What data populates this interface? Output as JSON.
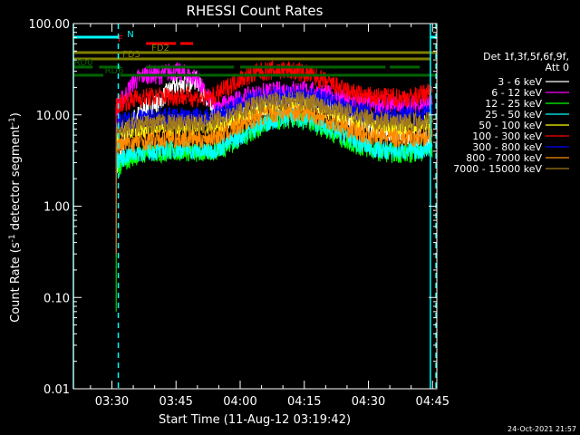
{
  "chart_data": {
    "type": "line",
    "title": "RHESSI Count Rates",
    "xlabel": "Start Time (11-Aug-12 03:19:42)",
    "ylabel_main": "Count Rate (s",
    "ylabel_sup1": "-1",
    "ylabel_mid": " detector segment",
    "ylabel_sup2": "-1",
    "ylabel_end": ")",
    "y_scale": "log",
    "ylim": [
      0.01,
      100
    ],
    "xlim_minutes": [
      201,
      286
    ],
    "x_ticks": [
      {
        "minute": 210,
        "label": "03:30"
      },
      {
        "minute": 225,
        "label": "03:45"
      },
      {
        "minute": 240,
        "label": "04:00"
      },
      {
        "minute": 255,
        "label": "04:15"
      },
      {
        "minute": 270,
        "label": "04:30"
      },
      {
        "minute": 285,
        "label": "04:45"
      }
    ],
    "y_ticks": [
      {
        "value": 100,
        "label": "100.00"
      },
      {
        "value": 10,
        "label": "10.00"
      },
      {
        "value": 1,
        "label": "1.00"
      },
      {
        "value": 0.1,
        "label": "0.10"
      },
      {
        "value": 0.01,
        "label": "0.01"
      }
    ],
    "legend_header": [
      "Det 1f,3f,5f,6f,9f,",
      "Att 0"
    ],
    "data_gap_minutes": [
      {
        "start": 203,
        "end": 211
      },
      {
        "start": 284,
        "end": 286
      }
    ],
    "series": [
      {
        "name": "3 - 6 keV",
        "color": "#ffffff",
        "values": [
          [
            211,
            2.5
          ],
          [
            213,
            5
          ],
          [
            215,
            9
          ],
          [
            218,
            12
          ],
          [
            221,
            14
          ],
          [
            224,
            20
          ],
          [
            227,
            22
          ],
          [
            230,
            24
          ],
          [
            232,
            14
          ],
          [
            234,
            10
          ],
          [
            237,
            9
          ],
          [
            240,
            10
          ],
          [
            244,
            12
          ],
          [
            248,
            13.5
          ],
          [
            252,
            14.5
          ],
          [
            256,
            14
          ],
          [
            260,
            12.5
          ],
          [
            264,
            10
          ],
          [
            268,
            8
          ],
          [
            272,
            7
          ],
          [
            276,
            6.5
          ],
          [
            280,
            6
          ],
          [
            283,
            5.5
          ],
          [
            285,
            4.5
          ]
        ]
      },
      {
        "name": "6 - 12 keV",
        "color": "#ff00ff",
        "values": [
          [
            211,
            12
          ],
          [
            213,
            16
          ],
          [
            215,
            23
          ],
          [
            218,
            28
          ],
          [
            221,
            27
          ],
          [
            224,
            30
          ],
          [
            227,
            28
          ],
          [
            230,
            25
          ],
          [
            232,
            16
          ],
          [
            234,
            13
          ],
          [
            237,
            13
          ],
          [
            240,
            15
          ],
          [
            244,
            17
          ],
          [
            248,
            18
          ],
          [
            252,
            19
          ],
          [
            256,
            18.5
          ],
          [
            260,
            17
          ],
          [
            264,
            15
          ],
          [
            268,
            13.5
          ],
          [
            272,
            13
          ],
          [
            276,
            13
          ],
          [
            280,
            13
          ],
          [
            283,
            13
          ],
          [
            285,
            13
          ]
        ]
      },
      {
        "name": "12 - 25 keV",
        "color": "#00ff00",
        "values": [
          [
            211,
            2.5
          ],
          [
            213,
            3
          ],
          [
            215,
            3.5
          ],
          [
            218,
            3.8
          ],
          [
            221,
            3.8
          ],
          [
            224,
            4
          ],
          [
            227,
            4
          ],
          [
            230,
            3.8
          ],
          [
            232,
            3.8
          ],
          [
            234,
            4
          ],
          [
            237,
            4.5
          ],
          [
            240,
            5.5
          ],
          [
            244,
            7
          ],
          [
            248,
            8.5
          ],
          [
            252,
            9
          ],
          [
            256,
            8.5
          ],
          [
            260,
            7
          ],
          [
            264,
            5.5
          ],
          [
            268,
            4.5
          ],
          [
            272,
            4
          ],
          [
            276,
            3.8
          ],
          [
            280,
            3.8
          ],
          [
            283,
            4
          ],
          [
            285,
            4.2
          ]
        ]
      },
      {
        "name": "25 - 50 keV",
        "color": "#00ffff",
        "values": [
          [
            211,
            3.2
          ],
          [
            213,
            3.5
          ],
          [
            215,
            3.8
          ],
          [
            218,
            4
          ],
          [
            221,
            4
          ],
          [
            224,
            4.2
          ],
          [
            227,
            4.2
          ],
          [
            230,
            4
          ],
          [
            232,
            4
          ],
          [
            234,
            4.2
          ],
          [
            237,
            4.8
          ],
          [
            240,
            5.8
          ],
          [
            244,
            7.5
          ],
          [
            248,
            9
          ],
          [
            252,
            9.5
          ],
          [
            256,
            9
          ],
          [
            260,
            7.5
          ],
          [
            264,
            6
          ],
          [
            268,
            4.8
          ],
          [
            272,
            4.2
          ],
          [
            276,
            4
          ],
          [
            280,
            4
          ],
          [
            283,
            4.2
          ],
          [
            285,
            4.5
          ]
        ]
      },
      {
        "name": "50 - 100 keV",
        "color": "#ffff00",
        "values": [
          [
            211,
            6
          ],
          [
            213,
            6.5
          ],
          [
            215,
            7
          ],
          [
            218,
            7.2
          ],
          [
            221,
            7.5
          ],
          [
            224,
            7.5
          ],
          [
            227,
            7.5
          ],
          [
            230,
            7.5
          ],
          [
            232,
            7.5
          ],
          [
            234,
            7.8
          ],
          [
            237,
            8.5
          ],
          [
            240,
            10
          ],
          [
            244,
            12
          ],
          [
            248,
            13
          ],
          [
            252,
            13.5
          ],
          [
            256,
            13
          ],
          [
            260,
            11.5
          ],
          [
            264,
            10
          ],
          [
            268,
            8.5
          ],
          [
            272,
            7.8
          ],
          [
            276,
            7.5
          ],
          [
            280,
            7.5
          ],
          [
            283,
            7.8
          ],
          [
            285,
            8
          ]
        ]
      },
      {
        "name": "100 - 300 keV",
        "color": "#ff0000",
        "values": [
          [
            211,
            13
          ],
          [
            213,
            14
          ],
          [
            215,
            15
          ],
          [
            218,
            15.5
          ],
          [
            221,
            16
          ],
          [
            224,
            16
          ],
          [
            227,
            16
          ],
          [
            230,
            15.5
          ],
          [
            232,
            15
          ],
          [
            234,
            16
          ],
          [
            237,
            20
          ],
          [
            240,
            25
          ],
          [
            244,
            29
          ],
          [
            248,
            31
          ],
          [
            252,
            30.5
          ],
          [
            256,
            28
          ],
          [
            260,
            23
          ],
          [
            264,
            19
          ],
          [
            268,
            16.5
          ],
          [
            272,
            15.5
          ],
          [
            276,
            15.5
          ],
          [
            280,
            15.5
          ],
          [
            283,
            17
          ],
          [
            285,
            19
          ]
        ]
      },
      {
        "name": "300 - 800 keV",
        "color": "#0000ff",
        "values": [
          [
            211,
            8
          ],
          [
            213,
            8.5
          ],
          [
            215,
            9
          ],
          [
            218,
            9.2
          ],
          [
            221,
            9.5
          ],
          [
            224,
            9.5
          ],
          [
            227,
            9.5
          ],
          [
            230,
            9.5
          ],
          [
            232,
            9.5
          ],
          [
            234,
            10
          ],
          [
            237,
            11
          ],
          [
            240,
            13
          ],
          [
            244,
            15
          ],
          [
            248,
            16
          ],
          [
            252,
            16.5
          ],
          [
            256,
            16
          ],
          [
            260,
            14.5
          ],
          [
            264,
            12.5
          ],
          [
            268,
            11
          ],
          [
            272,
            10
          ],
          [
            276,
            9.8
          ],
          [
            280,
            9.8
          ],
          [
            283,
            10
          ],
          [
            285,
            10.5
          ]
        ]
      },
      {
        "name": "800 - 7000 keV",
        "color": "#ff8c00",
        "values": [
          [
            211,
            4.5
          ],
          [
            213,
            4.8
          ],
          [
            215,
            5
          ],
          [
            218,
            5.2
          ],
          [
            221,
            5.4
          ],
          [
            224,
            5.5
          ],
          [
            227,
            5.5
          ],
          [
            230,
            5.5
          ],
          [
            232,
            5.5
          ],
          [
            234,
            5.8
          ],
          [
            237,
            6.5
          ],
          [
            240,
            7.8
          ],
          [
            244,
            9.5
          ],
          [
            248,
            10.5
          ],
          [
            252,
            11
          ],
          [
            256,
            10.5
          ],
          [
            260,
            9
          ],
          [
            264,
            7.5
          ],
          [
            268,
            6.3
          ],
          [
            272,
            5.8
          ],
          [
            276,
            5.6
          ],
          [
            280,
            5.6
          ],
          [
            283,
            5.8
          ],
          [
            285,
            6
          ]
        ]
      },
      {
        "name": "7000 - 15000 keV",
        "color": "#a0781e",
        "values": [
          [
            211,
            6.5
          ],
          [
            213,
            7
          ],
          [
            215,
            7.5
          ],
          [
            218,
            7.8
          ],
          [
            221,
            8
          ],
          [
            224,
            8
          ],
          [
            227,
            8
          ],
          [
            230,
            8
          ],
          [
            232,
            8
          ],
          [
            234,
            8.5
          ],
          [
            237,
            9.5
          ],
          [
            240,
            11
          ],
          [
            244,
            13
          ],
          [
            248,
            14
          ],
          [
            252,
            14.5
          ],
          [
            256,
            14
          ],
          [
            260,
            12.5
          ],
          [
            264,
            11
          ],
          [
            268,
            9.5
          ],
          [
            272,
            8.6
          ],
          [
            276,
            8.3
          ],
          [
            280,
            8.3
          ],
          [
            283,
            8.5
          ],
          [
            285,
            9
          ]
        ]
      }
    ],
    "flag_bars": [
      {
        "label": "N",
        "color": "#00ffff",
        "segments": [
          [
            201,
            211.5
          ],
          [
            284.5,
            286
          ]
        ]
      },
      {
        "label": "F",
        "color": "#ff0000",
        "segments": [
          [
            218,
            225
          ],
          [
            226,
            229
          ]
        ]
      },
      {
        "label": "FD2",
        "color": "#808000",
        "segments": [
          [
            201,
            286
          ]
        ]
      },
      {
        "label": "FD3",
        "color": "#808000",
        "segments": [
          [
            201,
            284.5
          ]
        ]
      },
      {
        "label": "RD0",
        "color": "#006400",
        "segments": [
          [
            201,
            205.5
          ],
          [
            207,
            212
          ],
          [
            218,
            238.5
          ],
          [
            240,
            274
          ],
          [
            275,
            282
          ]
        ]
      },
      {
        "label": "RD6",
        "color": "#006400",
        "segments": [
          [
            201,
            208
          ],
          [
            212,
            286
          ]
        ]
      }
    ],
    "vertical_lines": [
      {
        "minute": 201,
        "color": "#00ffff",
        "style": "solid"
      },
      {
        "minute": 211.5,
        "color": "#00ffff",
        "style": "dashed"
      },
      {
        "minute": 284.5,
        "color": "#00ffff",
        "style": "solid"
      },
      {
        "minute": 285.8,
        "color": "#00ffff",
        "style": "dashed"
      }
    ],
    "grid": false,
    "legend_position": "right",
    "footer_timestamp": "24-Oct-2021 21:57"
  },
  "colors": {
    "background": "#000000",
    "axes": "#ffffff"
  }
}
